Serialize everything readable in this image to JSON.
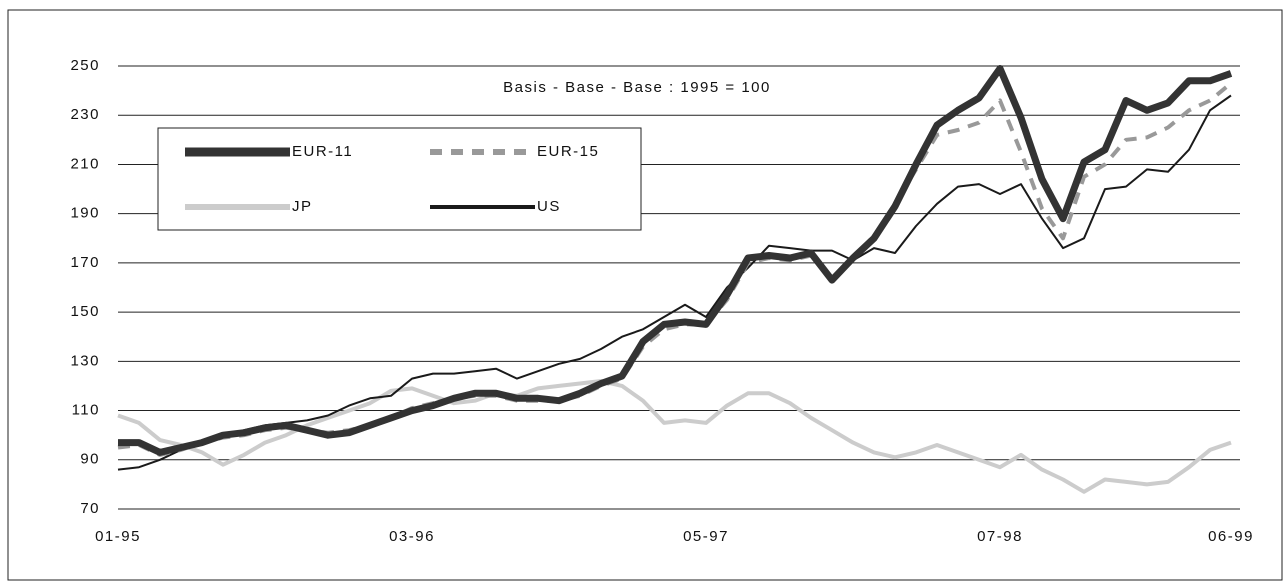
{
  "chart_data": {
    "type": "line",
    "annotation": "Basis - Base - Base : 1995 = 100",
    "categories": [
      "01-95",
      null,
      null,
      null,
      null,
      null,
      null,
      null,
      null,
      null,
      null,
      null,
      null,
      null,
      "03-96",
      null,
      null,
      null,
      null,
      null,
      null,
      null,
      null,
      null,
      null,
      null,
      null,
      null,
      "05-97",
      null,
      null,
      null,
      null,
      null,
      null,
      null,
      null,
      null,
      null,
      null,
      null,
      null,
      "07-98",
      null,
      null,
      null,
      null,
      null,
      null,
      null,
      null,
      null,
      null,
      "06-99"
    ],
    "ylim": [
      70,
      250
    ],
    "yticks": [
      70,
      90,
      110,
      130,
      150,
      170,
      190,
      210,
      230,
      250
    ],
    "grid": true,
    "series": [
      {
        "name": "EUR-11",
        "color": "#333333",
        "values": [
          97,
          97,
          93,
          95,
          97,
          100,
          101,
          103,
          104,
          102,
          100,
          101,
          104,
          107,
          110,
          112,
          115,
          117,
          117,
          115,
          115,
          114,
          117,
          121,
          124,
          138,
          145,
          146,
          145,
          157,
          172,
          173,
          172,
          174,
          163,
          172,
          180,
          193,
          210,
          226,
          232,
          237,
          249,
          229,
          204,
          188,
          211,
          216,
          236,
          232,
          235,
          244,
          244,
          247
        ]
      },
      {
        "name": "EUR-15",
        "color": "#999999",
        "values": [
          95,
          96,
          92,
          94,
          97,
          99,
          100,
          102,
          103,
          102,
          101,
          102,
          104,
          107,
          111,
          113,
          115,
          116,
          116,
          114,
          114,
          114,
          116,
          120,
          123,
          136,
          143,
          145,
          145,
          155,
          170,
          172,
          171,
          173,
          164,
          172,
          181,
          194,
          208,
          222,
          224,
          227,
          236,
          215,
          192,
          180,
          205,
          210,
          220,
          221,
          225,
          232,
          236,
          243
        ]
      },
      {
        "name": "JP",
        "color": "#cccccc",
        "values": [
          108,
          105,
          98,
          96,
          93,
          88,
          92,
          97,
          100,
          104,
          107,
          110,
          113,
          118,
          119,
          116,
          113,
          114,
          117,
          116,
          119,
          120,
          121,
          122,
          120,
          114,
          105,
          106,
          105,
          112,
          117,
          117,
          113,
          107,
          102,
          97,
          93,
          91,
          93,
          96,
          93,
          90,
          87,
          92,
          86,
          82,
          77,
          82,
          81,
          80,
          81,
          87,
          94,
          97
        ]
      },
      {
        "name": "US",
        "color": "#1a1a1a",
        "values": [
          86,
          87,
          90,
          94,
          97,
          100,
          102,
          104,
          105,
          106,
          108,
          112,
          115,
          116,
          123,
          125,
          125,
          126,
          127,
          123,
          126,
          129,
          131,
          135,
          140,
          143,
          148,
          153,
          148,
          160,
          168,
          177,
          176,
          175,
          175,
          171,
          176,
          174,
          185,
          194,
          201,
          202,
          198,
          202,
          188,
          176,
          180,
          200,
          201,
          208,
          207,
          216,
          232,
          238
        ]
      }
    ]
  }
}
